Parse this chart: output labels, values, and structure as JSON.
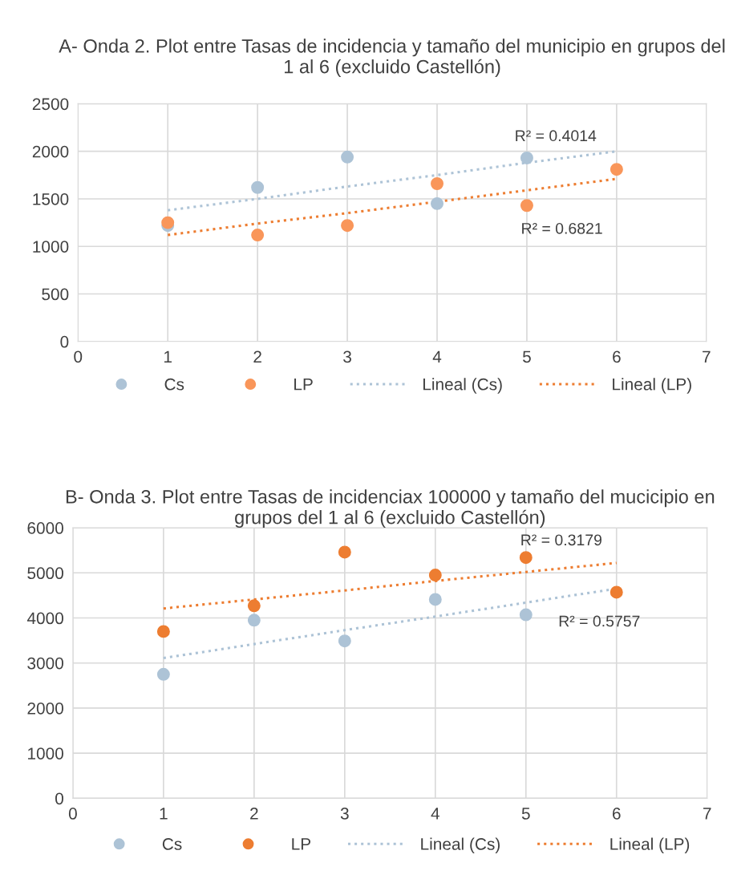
{
  "chart_data": [
    {
      "type": "scatter",
      "title": "A- Onda 2. Plot entre Tasas de incidencia y tamaño del municipio en grupos del 1 al 6 (excluido Castellón)",
      "x": [
        1,
        2,
        3,
        4,
        5,
        6
      ],
      "xlim": [
        0,
        7
      ],
      "xticks": [
        0,
        1,
        2,
        3,
        4,
        5,
        6,
        7
      ],
      "ylim": [
        0,
        2500
      ],
      "yticks": [
        0,
        500,
        1000,
        1500,
        2000,
        2500
      ],
      "grid": true,
      "legend": "bottom",
      "series": [
        {
          "name": "Cs",
          "color": "#adc3d6",
          "marker": "circle",
          "values": [
            1220,
            1620,
            1940,
            1450,
            1930,
            null
          ]
        },
        {
          "name": "LP",
          "color": "#f9965a",
          "marker": "circle",
          "values": [
            1250,
            1120,
            1220,
            1660,
            1430,
            1810
          ]
        },
        {
          "name": "Lineal (Cs)",
          "type": "line",
          "color": "#adc3d6",
          "line_style": "dotted",
          "marker": "none",
          "values": [
            1380,
            1500,
            1630,
            1750,
            1880,
            2000
          ]
        },
        {
          "name": "Lineal (LP)",
          "type": "line",
          "color": "#ed7d31",
          "line_style": "dotted",
          "marker": "none",
          "values": [
            1120,
            1240,
            1350,
            1470,
            1590,
            1710
          ]
        }
      ],
      "annotations": [
        "R² = 0.4014",
        "R² = 0.6821"
      ]
    },
    {
      "type": "scatter",
      "title": "B- Onda 3. Plot entre Tasas de incidenciax 100000 y tamaño del mucicipio en grupos del 1 al 6 (excluido Castellón)",
      "x": [
        1,
        2,
        3,
        4,
        5,
        6
      ],
      "xlim": [
        0,
        7
      ],
      "xticks": [
        0,
        1,
        2,
        3,
        4,
        5,
        6,
        7
      ],
      "ylim": [
        0,
        6000
      ],
      "yticks": [
        0,
        1000,
        2000,
        3000,
        4000,
        5000,
        6000
      ],
      "grid": true,
      "legend": "bottom",
      "series": [
        {
          "name": "Cs",
          "color": "#adc3d6",
          "marker": "circle",
          "values": [
            2750,
            3950,
            3490,
            4410,
            4070,
            null
          ]
        },
        {
          "name": "LP",
          "color": "#ed7d31",
          "marker": "circle",
          "values": [
            3700,
            4270,
            5460,
            4950,
            5340,
            4570
          ]
        },
        {
          "name": "Lineal (Cs)",
          "type": "line",
          "color": "#adc3d6",
          "line_style": "dotted",
          "marker": "none",
          "values": [
            3110,
            3420,
            3730,
            4030,
            4340,
            4650
          ]
        },
        {
          "name": "Lineal (LP)",
          "type": "line",
          "color": "#ed7d31",
          "line_style": "dotted",
          "marker": "none",
          "values": [
            4210,
            4410,
            4610,
            4820,
            5020,
            5220
          ]
        }
      ],
      "annotations": [
        "R² = 0.3179",
        "R² = 0.5757"
      ]
    }
  ]
}
